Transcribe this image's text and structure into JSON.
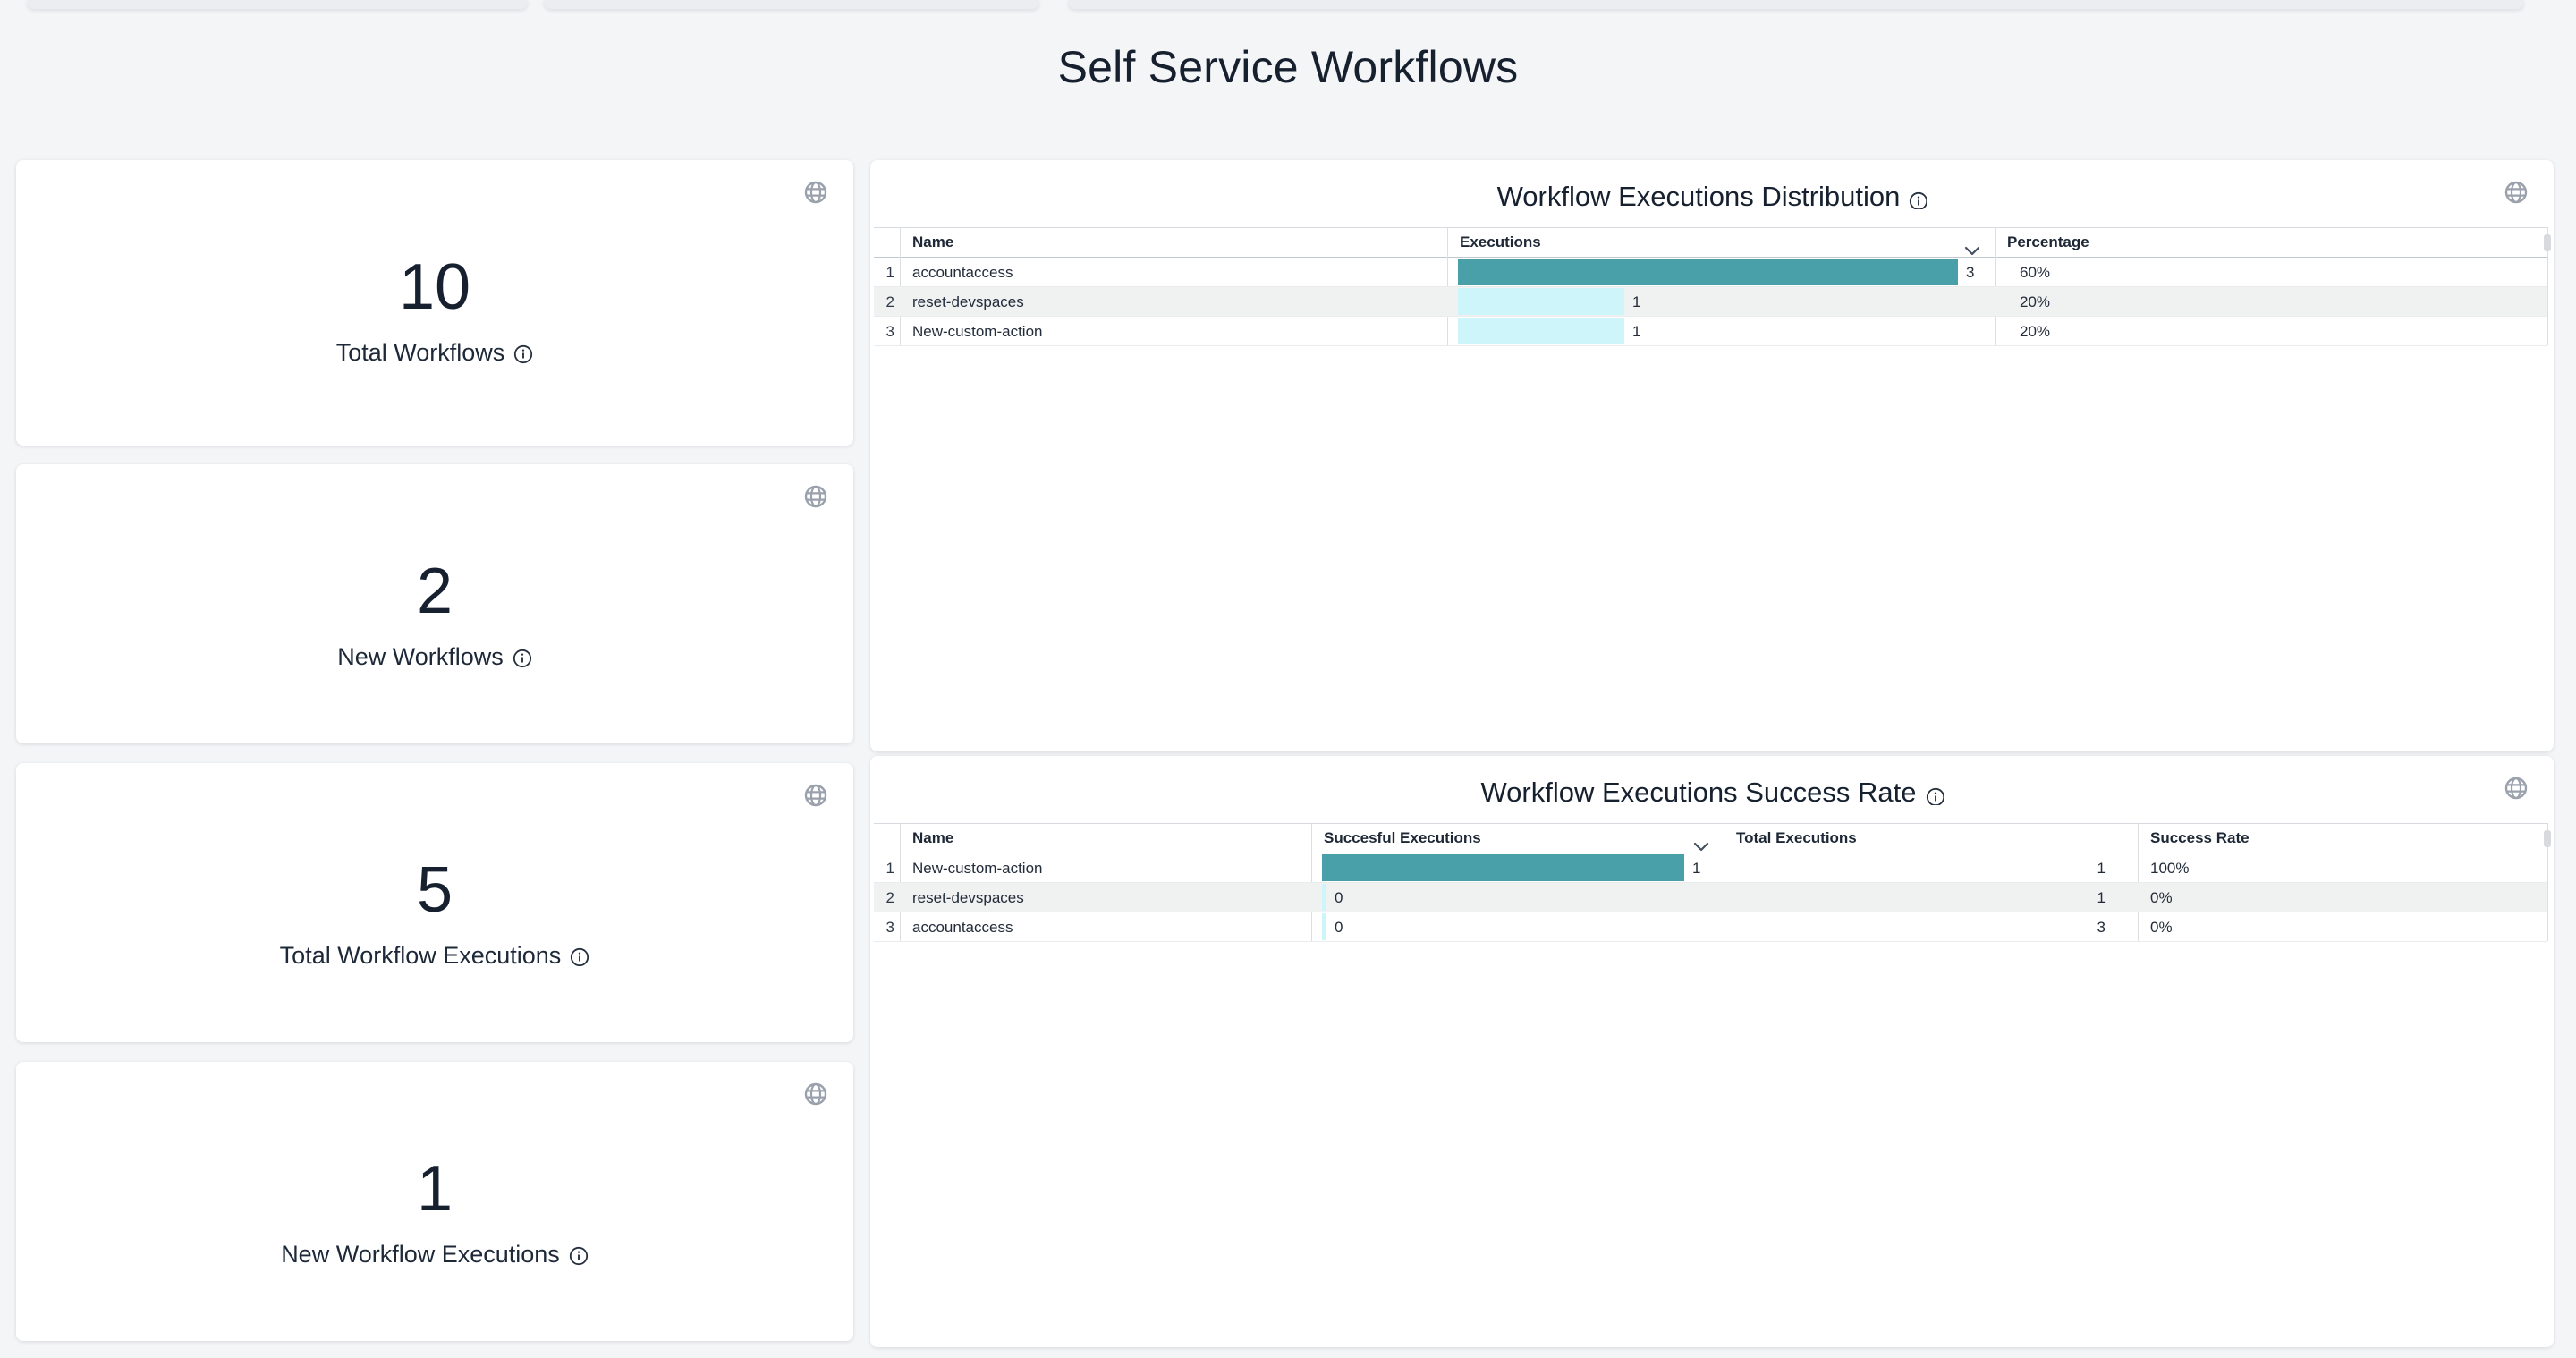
{
  "page": {
    "title": "Self Service Workflows"
  },
  "colors": {
    "background": "#f4f5f7",
    "bar_primary": "#4aa0a8",
    "bar_secondary": "#cef5fa",
    "row_stripe": "#f0f1f1",
    "text_dark": "#16202f",
    "icon_gray": "#9aa1ac"
  },
  "kpi_cards": [
    {
      "value": "10",
      "label": "Total Workflows"
    },
    {
      "value": "2",
      "label": "New Workflows"
    },
    {
      "value": "5",
      "label": "Total Workflow Executions"
    },
    {
      "value": "1",
      "label": "New Workflow Executions"
    }
  ],
  "distribution_table": {
    "title": "Workflow Executions Distribution",
    "columns": {
      "name": "Name",
      "executions": "Executions",
      "percentage": "Percentage"
    },
    "sorted_column": "executions",
    "bar_max": 3,
    "rows": [
      {
        "index": "1",
        "name": "accountaccess",
        "executions": 3,
        "percentage": "60%"
      },
      {
        "index": "2",
        "name": "reset-devspaces",
        "executions": 1,
        "percentage": "20%"
      },
      {
        "index": "3",
        "name": "New-custom-action",
        "executions": 1,
        "percentage": "20%"
      }
    ]
  },
  "success_table": {
    "title": "Workflow Executions Success Rate",
    "columns": {
      "name": "Name",
      "successful": "Succesful Executions",
      "total": "Total Executions",
      "rate": "Success Rate"
    },
    "sorted_column": "successful",
    "bar_max": 1,
    "rows": [
      {
        "index": "1",
        "name": "New-custom-action",
        "successful": 1,
        "total": "1",
        "rate": "100%"
      },
      {
        "index": "2",
        "name": "reset-devspaces",
        "successful": 0,
        "total": "1",
        "rate": "0%"
      },
      {
        "index": "3",
        "name": "accountaccess",
        "successful": 0,
        "total": "3",
        "rate": "0%"
      }
    ]
  }
}
